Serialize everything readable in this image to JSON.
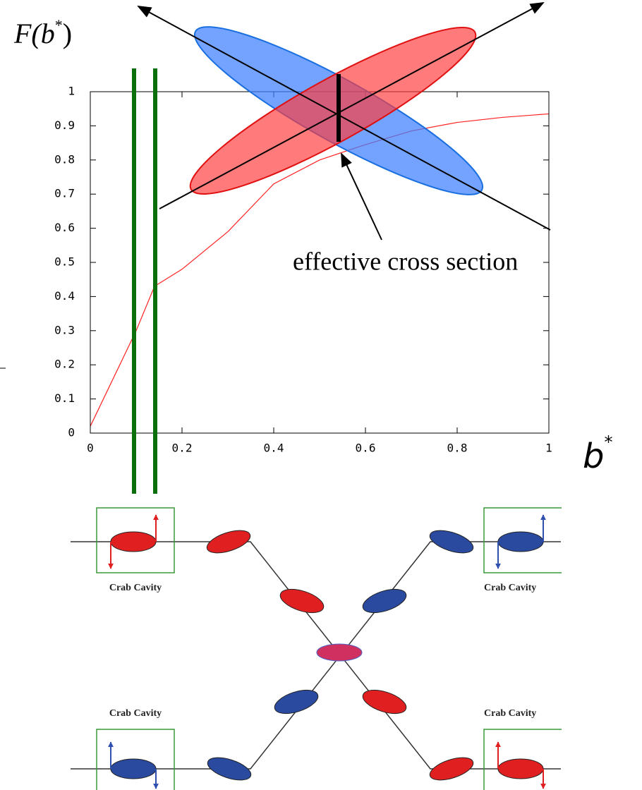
{
  "chart_data": {
    "type": "line",
    "ylabel": [
      "F(",
      "b",
      "*",
      ")"
    ],
    "xlabel": [
      "b",
      "*"
    ],
    "annotation": "effective cross section",
    "x": [
      0,
      0.1,
      0.14,
      0.2,
      0.3,
      0.4,
      0.5,
      0.6,
      0.7,
      0.8,
      0.9,
      1.0
    ],
    "series": [
      {
        "color": "#ff2020",
        "values": [
          0.02,
          0.3,
          0.43,
          0.48,
          0.59,
          0.73,
          0.8,
          0.845,
          0.885,
          0.91,
          0.925,
          0.935
        ]
      }
    ],
    "xlim": [
      0,
      1
    ],
    "ylim": [
      0,
      1
    ],
    "xticks": [
      0,
      0.2,
      0.4,
      0.6,
      0.8,
      1
    ],
    "yticks": [
      0,
      0.1,
      0.2,
      0.3,
      0.4,
      0.5,
      0.6,
      0.7,
      0.8,
      0.9,
      1
    ]
  },
  "diagram": {
    "labels": [
      "Crab Cavity",
      "Crab Cavity",
      "Crab Cavity",
      "Crab Cavity"
    ]
  }
}
